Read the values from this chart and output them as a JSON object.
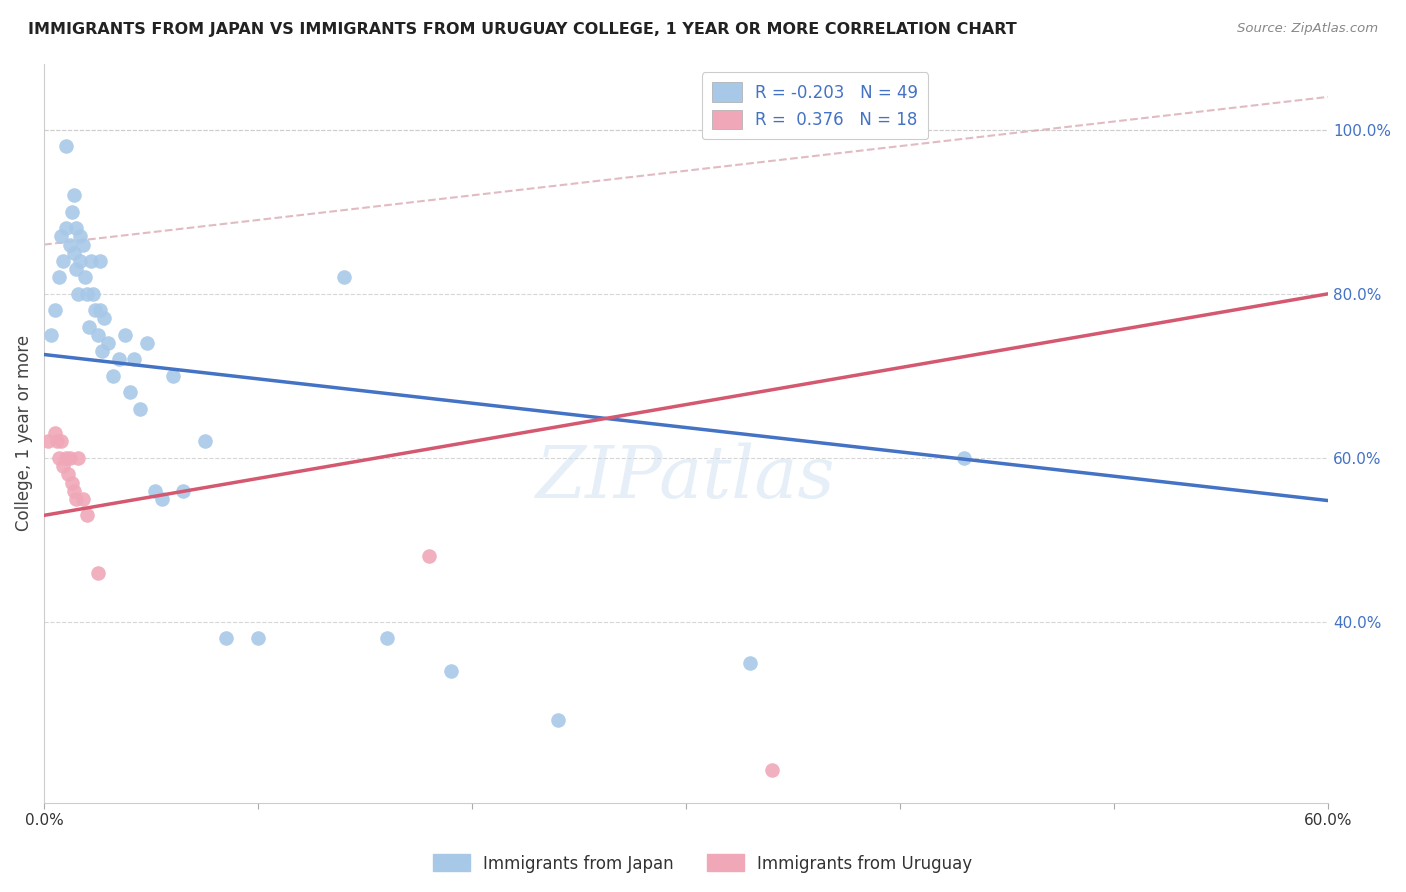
{
  "title": "IMMIGRANTS FROM JAPAN VS IMMIGRANTS FROM URUGUAY COLLEGE, 1 YEAR OR MORE CORRELATION CHART",
  "source": "Source: ZipAtlas.com",
  "ylabel": "College, 1 year or more",
  "right_yticks": [
    0.4,
    0.6,
    0.8,
    1.0
  ],
  "right_ytick_labels": [
    "40.0%",
    "60.0%",
    "80.0%",
    "100.0%"
  ],
  "xlim": [
    0.0,
    0.6
  ],
  "ylim": [
    0.18,
    1.08
  ],
  "legend_R_japan": "-0.203",
  "legend_N_japan": "49",
  "legend_R_uruguay": "0.376",
  "legend_N_uruguay": "18",
  "color_japan": "#a8c8e8",
  "color_uruguay": "#f0a8b8",
  "line_color_japan": "#4472c4",
  "line_color_uruguay": "#d45870",
  "line_color_dashed": "#d4a0a8",
  "background_color": "#ffffff",
  "japan_x": [
    0.003,
    0.005,
    0.007,
    0.008,
    0.009,
    0.01,
    0.01,
    0.012,
    0.013,
    0.014,
    0.014,
    0.015,
    0.015,
    0.016,
    0.017,
    0.017,
    0.018,
    0.019,
    0.02,
    0.021,
    0.022,
    0.023,
    0.024,
    0.025,
    0.026,
    0.026,
    0.027,
    0.028,
    0.03,
    0.032,
    0.035,
    0.038,
    0.04,
    0.042,
    0.045,
    0.048,
    0.052,
    0.055,
    0.06,
    0.065,
    0.075,
    0.085,
    0.1,
    0.14,
    0.16,
    0.19,
    0.24,
    0.33,
    0.43
  ],
  "japan_y": [
    0.75,
    0.78,
    0.82,
    0.87,
    0.84,
    0.98,
    0.88,
    0.86,
    0.9,
    0.85,
    0.92,
    0.88,
    0.83,
    0.8,
    0.87,
    0.84,
    0.86,
    0.82,
    0.8,
    0.76,
    0.84,
    0.8,
    0.78,
    0.75,
    0.78,
    0.84,
    0.73,
    0.77,
    0.74,
    0.7,
    0.72,
    0.75,
    0.68,
    0.72,
    0.66,
    0.74,
    0.56,
    0.55,
    0.7,
    0.56,
    0.62,
    0.38,
    0.38,
    0.82,
    0.38,
    0.34,
    0.28,
    0.35,
    0.6
  ],
  "uruguay_x": [
    0.002,
    0.005,
    0.006,
    0.007,
    0.008,
    0.009,
    0.01,
    0.011,
    0.012,
    0.013,
    0.014,
    0.015,
    0.016,
    0.018,
    0.02,
    0.025,
    0.18,
    0.34
  ],
  "uruguay_y": [
    0.62,
    0.63,
    0.62,
    0.6,
    0.62,
    0.59,
    0.6,
    0.58,
    0.6,
    0.57,
    0.56,
    0.55,
    0.6,
    0.55,
    0.53,
    0.46,
    0.48,
    0.22
  ],
  "japan_line_x0": 0.0,
  "japan_line_y0": 0.726,
  "japan_line_x1": 0.6,
  "japan_line_y1": 0.548,
  "uruguay_line_x0": 0.0,
  "uruguay_line_y0": 0.53,
  "uruguay_line_x1": 0.6,
  "uruguay_line_y1": 0.8,
  "dash_line_x0": 0.0,
  "dash_line_y0": 0.86,
  "dash_line_x1": 0.6,
  "dash_line_y1": 1.04
}
